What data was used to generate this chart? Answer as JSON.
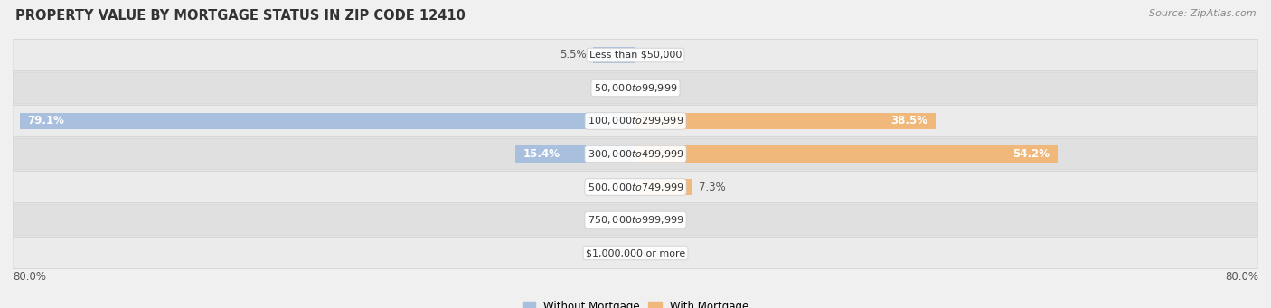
{
  "title": "PROPERTY VALUE BY MORTGAGE STATUS IN ZIP CODE 12410",
  "source": "Source: ZipAtlas.com",
  "categories": [
    "Less than $50,000",
    "$50,000 to $99,999",
    "$100,000 to $299,999",
    "$300,000 to $499,999",
    "$500,000 to $749,999",
    "$750,000 to $999,999",
    "$1,000,000 or more"
  ],
  "without_mortgage": [
    5.5,
    0.0,
    79.1,
    15.4,
    0.0,
    0.0,
    0.0
  ],
  "with_mortgage": [
    0.0,
    0.0,
    38.5,
    54.2,
    7.3,
    0.0,
    0.0
  ],
  "color_without": "#a8c0dd",
  "color_with": "#f0b87a",
  "bar_height": 0.52,
  "xlim": 80.0,
  "title_fontsize": 10.5,
  "source_fontsize": 8,
  "label_fontsize": 8.5,
  "cat_fontsize": 8,
  "legend_fontsize": 8.5,
  "bg_color": "#f0f0f0",
  "row_color_odd": "#ebebeb",
  "row_color_even": "#e0e0e0",
  "row_edge_color": "#d0d0d0",
  "value_color": "#555555",
  "value_inside_color": "#ffffff"
}
